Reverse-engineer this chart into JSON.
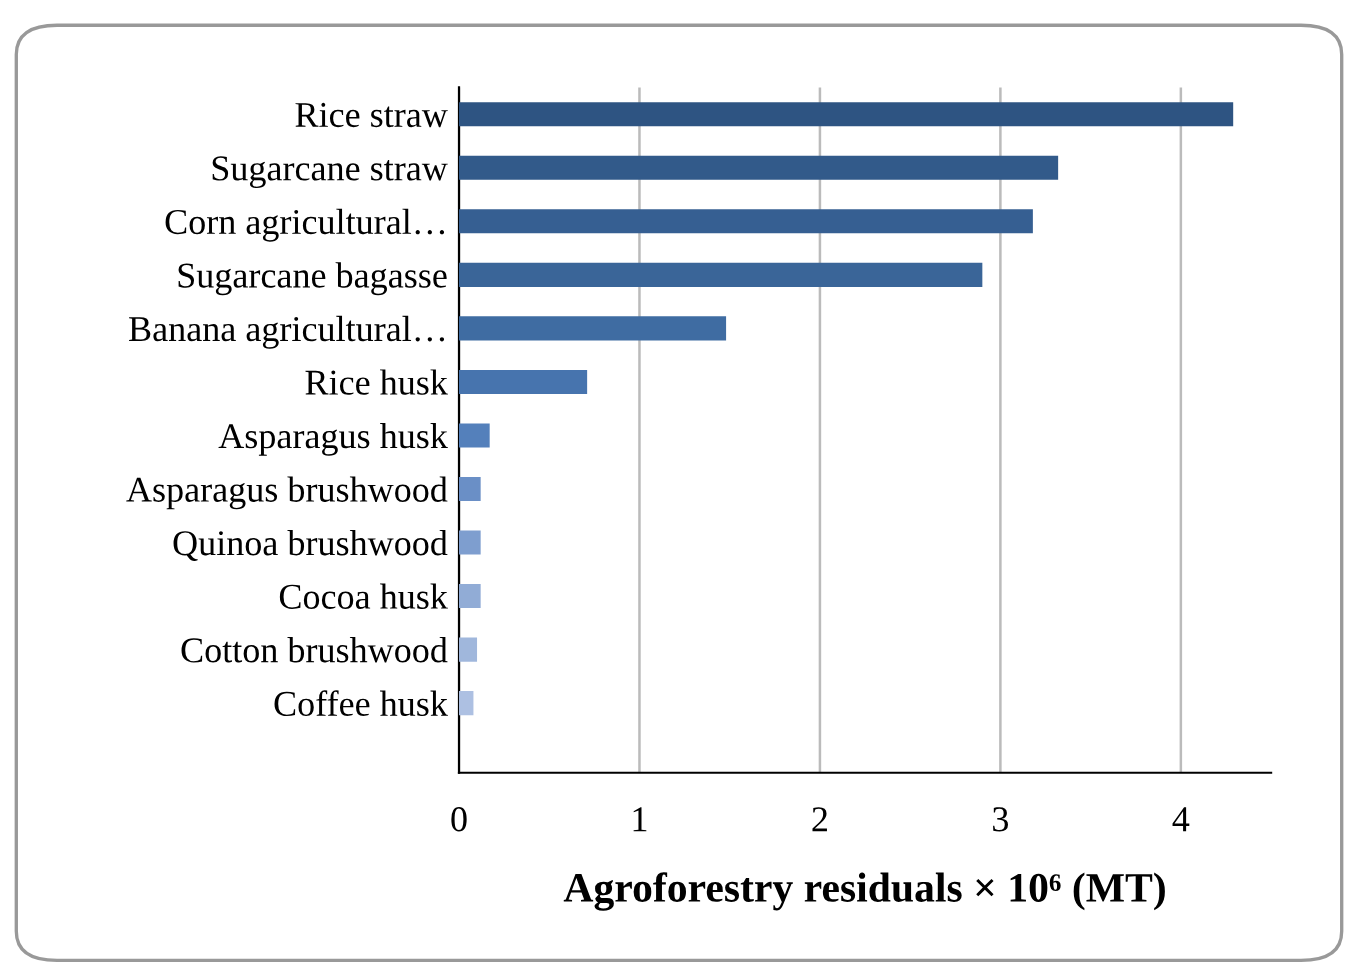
{
  "chart_data": {
    "type": "bar",
    "orientation": "horizontal",
    "xlabel": "Agroforestry residuals × 10⁶ (MT)",
    "categories": [
      "Rice straw",
      "Sugarcane straw",
      "Corn agricultural…",
      "Sugarcane bagasse",
      "Banana agricultural…",
      "Rice husk",
      "Asparagus husk",
      "Asparagus brushwood",
      "Quinoa brushwood",
      "Cocoa husk",
      "Cotton brushwood",
      "Coffee husk"
    ],
    "values": [
      4.29,
      3.32,
      3.18,
      2.9,
      1.48,
      0.71,
      0.17,
      0.12,
      0.12,
      0.12,
      0.1,
      0.08
    ],
    "colors": [
      "#2e5482",
      "#325a8a",
      "#365f92",
      "#3a6598",
      "#3f6ca2",
      "#4774ae",
      "#5480bb",
      "#6a8fc6",
      "#7e9ecf",
      "#91acd6",
      "#a0b7dc",
      "#adc0e2"
    ],
    "xlim": [
      0,
      4.5
    ],
    "xticks": [
      0,
      1,
      2,
      3,
      4
    ],
    "grid": "x"
  }
}
